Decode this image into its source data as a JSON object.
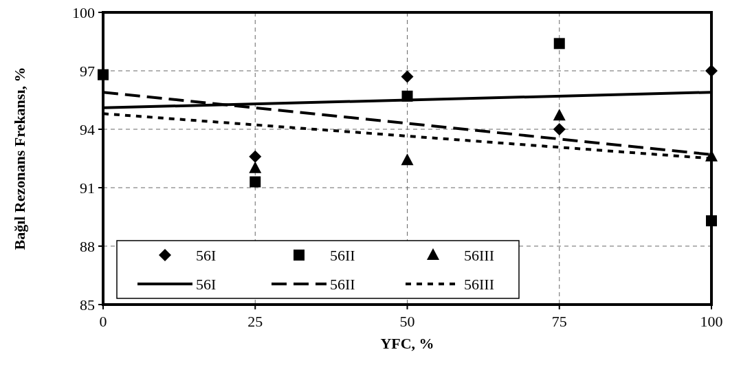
{
  "chart_data": {
    "type": "scatter",
    "xlabel": "YFC, %",
    "ylabel": "Bağıl Rezonans Frekansı, %",
    "x": [
      0,
      25,
      50,
      75,
      100
    ],
    "xlim": [
      0,
      100
    ],
    "xticks": [
      0,
      25,
      50,
      75,
      100
    ],
    "ylim": [
      85,
      100
    ],
    "yticks": [
      85,
      88,
      91,
      94,
      97,
      100
    ],
    "grid": true,
    "legend": "bottom left",
    "series": [
      {
        "name": "56I",
        "type": "scatter",
        "marker": "diamond",
        "color": "#000000",
        "values": [
          null,
          92.6,
          96.7,
          94.0,
          97.0
        ]
      },
      {
        "name": "56II",
        "type": "scatter",
        "marker": "square",
        "color": "#000000",
        "values": [
          96.8,
          91.3,
          95.7,
          98.4,
          89.3
        ]
      },
      {
        "name": "56III",
        "type": "scatter",
        "marker": "triangle",
        "color": "#000000",
        "values": [
          null,
          92.0,
          92.4,
          94.7,
          92.6
        ]
      },
      {
        "name": "56I",
        "type": "line",
        "line_style": "solid",
        "color": "#000000",
        "values": [
          95.1,
          null,
          null,
          null,
          95.9
        ]
      },
      {
        "name": "56II",
        "type": "line",
        "line_style": "dashed",
        "color": "#000000",
        "values": [
          95.9,
          null,
          null,
          null,
          92.7
        ]
      },
      {
        "name": "56III",
        "type": "line",
        "line_style": "dotted",
        "color": "#000000",
        "values": [
          94.8,
          null,
          null,
          null,
          92.5
        ]
      }
    ]
  }
}
